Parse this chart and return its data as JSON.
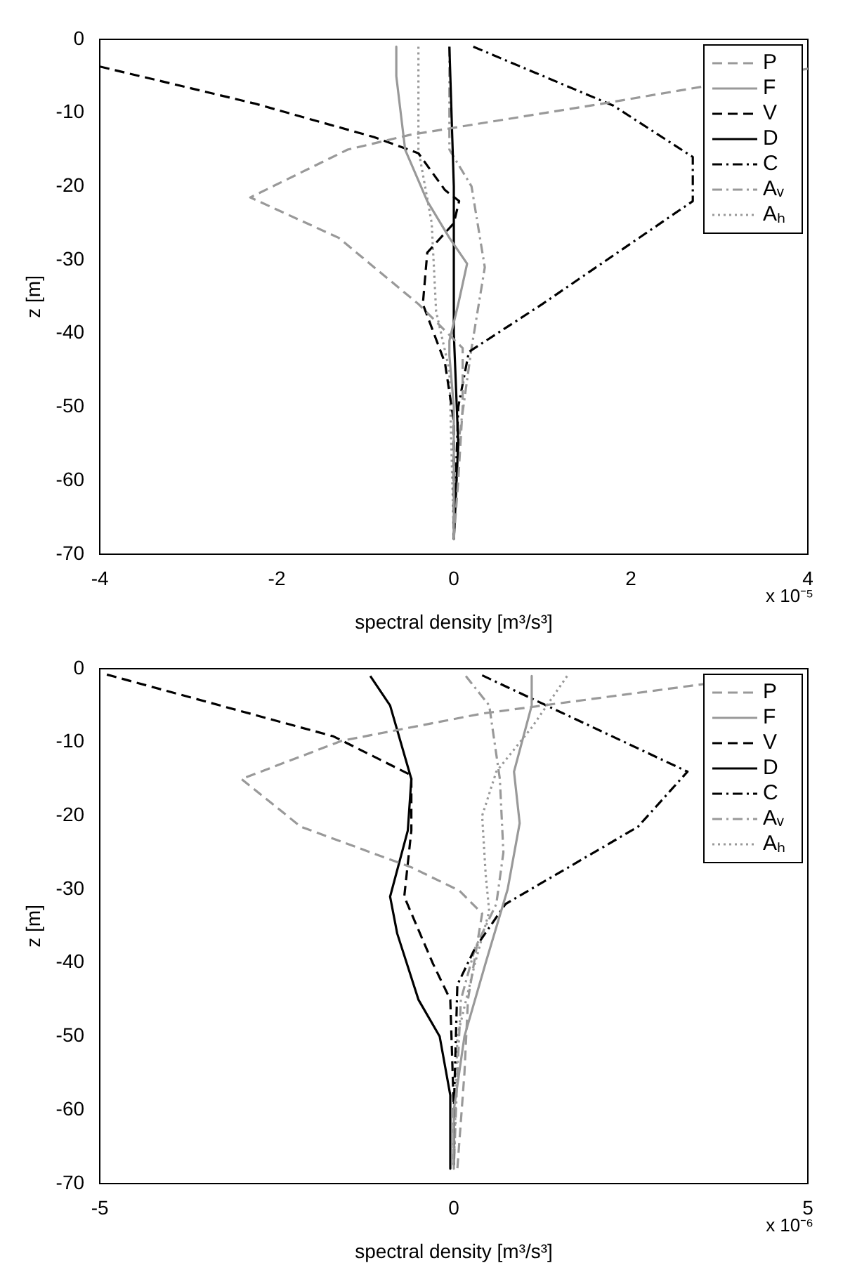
{
  "chart_data": [
    {
      "type": "line",
      "xlabel": "spectral density [m³/s³]",
      "ylabel": "z [m]",
      "xlim": [
        -4,
        4
      ],
      "xticks": [
        -4,
        -2,
        0,
        2,
        4
      ],
      "ylim": [
        -70,
        0
      ],
      "yticks": [
        -70,
        -60,
        -50,
        -40,
        -30,
        -20,
        -10,
        0
      ],
      "grid": false,
      "legend": "top right",
      "marker": "none",
      "annotations": [
        "x 10⁻⁵"
      ],
      "series": [
        {
          "name": "P",
          "color": "#999999",
          "line_style": "dashed",
          "x": [
            4,
            1.7,
            -0.5,
            -1.2,
            -2.3,
            -1.3,
            -0.4,
            0.1,
            0.1,
            0.05,
            0
          ],
          "values": [
            -4,
            -8.7,
            -13,
            -15,
            -21.5,
            -27,
            -36,
            -42,
            -50,
            -60,
            -68
          ]
        },
        {
          "name": "F",
          "color": "#999999",
          "line_style": "solid",
          "x": [
            -0.65,
            -0.65,
            -0.55,
            -0.3,
            -0.05,
            0.15,
            0.05,
            -0.05,
            -0.05,
            0,
            0
          ],
          "values": [
            -1,
            -5,
            -15,
            -22,
            -27,
            -30.5,
            -36,
            -41,
            -43,
            -50,
            -68
          ]
        },
        {
          "name": "V",
          "color": "#000000",
          "line_style": "dashed",
          "x": [
            -4,
            -2.26,
            -0.9,
            -0.4,
            -0.1,
            0.06,
            0,
            -0.3,
            -0.35,
            -0.1,
            0,
            0
          ],
          "values": [
            -3.7,
            -8.7,
            -13.3,
            -15.5,
            -20.5,
            -22,
            -25,
            -29,
            -36,
            -44,
            -52,
            -68
          ]
        },
        {
          "name": "D",
          "color": "#000000",
          "line_style": "solid",
          "x": [
            -0.05,
            0,
            0,
            0.05,
            0
          ],
          "values": [
            -1,
            -20,
            -40,
            -55,
            -68
          ]
        },
        {
          "name": "C",
          "color": "#000000",
          "line_style": "dashdot",
          "x": [
            0.22,
            1.8,
            2.7,
            2.7,
            1,
            0.17,
            0.05,
            0
          ],
          "values": [
            -1,
            -9,
            -16,
            -22,
            -36,
            -42.5,
            -50,
            -68
          ]
        },
        {
          "name": "Aᵥ",
          "color": "#999999",
          "line_style": "dashdot",
          "x": [
            -0.05,
            -0.05,
            0.2,
            0.35,
            0.2,
            0.05,
            0
          ],
          "values": [
            -1,
            -15,
            -20,
            -31,
            -42,
            -55,
            -68
          ]
        },
        {
          "name": "Aₕ",
          "color": "#999999",
          "line_style": "dotted",
          "x": [
            -0.4,
            -0.4,
            -0.25,
            -0.2,
            -0.05,
            0
          ],
          "values": [
            -1,
            -15,
            -25,
            -37,
            -45,
            -68
          ]
        }
      ]
    },
    {
      "type": "line",
      "xlabel": "spectral density [m³/s³]",
      "ylabel": "z [m]",
      "xlim": [
        -5,
        5
      ],
      "xticks": [
        -5,
        0,
        5
      ],
      "ylim": [
        -70,
        0
      ],
      "yticks": [
        -70,
        -60,
        -50,
        -40,
        -30,
        -20,
        -10,
        0
      ],
      "grid": false,
      "legend": "top right",
      "marker": "none",
      "annotations": [
        "x 10⁻⁶"
      ],
      "series": [
        {
          "name": "P",
          "color": "#999999",
          "line_style": "dashed",
          "x": [
            4.46,
            0.4,
            -1.58,
            -3,
            -2.16,
            -0.6,
            0.08,
            0.4,
            0.2,
            0.15,
            0.05
          ],
          "values": [
            -0.9,
            -6.1,
            -9.8,
            -15,
            -21.5,
            -27,
            -30.2,
            -33.3,
            -45,
            -55,
            -68
          ]
        },
        {
          "name": "F",
          "color": "#999999",
          "line_style": "solid",
          "x": [
            1.1,
            1.1,
            0.85,
            0.93,
            0.76,
            0.45,
            0.15,
            0,
            0
          ],
          "values": [
            -1,
            -5,
            -14,
            -21,
            -30,
            -40,
            -50,
            -60,
            -68
          ]
        },
        {
          "name": "V",
          "color": "#000000",
          "line_style": "dashed",
          "x": [
            -4.9,
            -1.7,
            -0.6,
            -0.6,
            -0.7,
            -0.3,
            -0.05,
            0,
            0
          ],
          "values": [
            -0.8,
            -9.2,
            -14.5,
            -22,
            -31,
            -40,
            -45,
            -60,
            -68
          ]
        },
        {
          "name": "D",
          "color": "#000000",
          "line_style": "solid",
          "x": [
            -1.18,
            -0.9,
            -0.6,
            -0.65,
            -0.9,
            -0.8,
            -0.5,
            -0.2,
            -0.05,
            -0.05
          ],
          "values": [
            -1,
            -5,
            -15,
            -22,
            -31,
            -36,
            -45,
            -50,
            -58,
            -68
          ]
        },
        {
          "name": "C",
          "color": "#000000",
          "line_style": "dashdot",
          "x": [
            0.4,
            3.3,
            2.6,
            0.73,
            0.3,
            0.05,
            0,
            0
          ],
          "values": [
            -0.9,
            -14,
            -21.5,
            -32,
            -38,
            -43,
            -60,
            -68
          ]
        },
        {
          "name": "Aᵥ",
          "color": "#999999",
          "line_style": "dashdot",
          "x": [
            0.17,
            0.5,
            0.65,
            0.7,
            0.6,
            0.3,
            0.1,
            0.05,
            0
          ],
          "values": [
            -1,
            -5,
            -15,
            -25,
            -32,
            -38,
            -45,
            -55,
            -68
          ]
        },
        {
          "name": "Aₕ",
          "color": "#999999",
          "line_style": "dotted",
          "x": [
            1.6,
            1.1,
            0.6,
            0.4,
            0.45,
            0.5,
            0.3,
            0.05,
            0
          ],
          "values": [
            -1,
            -8,
            -14,
            -20,
            -28,
            -33,
            -40,
            -50,
            -68
          ]
        }
      ]
    }
  ]
}
